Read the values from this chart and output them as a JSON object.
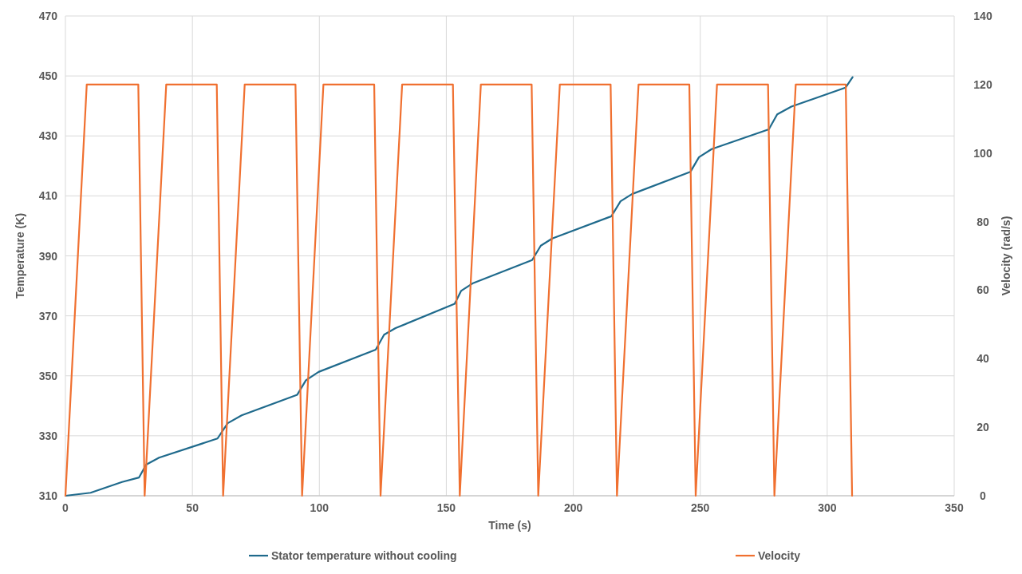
{
  "chart_data": {
    "type": "line",
    "xlabel": "Time (s)",
    "ylabel": "Temperature (K)",
    "y2label": "Velocity (rad/s)",
    "xlim": [
      0,
      350
    ],
    "xticks": [
      0,
      50,
      100,
      150,
      200,
      250,
      300,
      350
    ],
    "ylim": [
      310,
      470
    ],
    "yticks": [
      310,
      330,
      350,
      370,
      390,
      410,
      430,
      450,
      470
    ],
    "y2lim": [
      0,
      140
    ],
    "y2ticks": [
      0,
      20,
      40,
      60,
      80,
      100,
      120,
      140
    ],
    "grid": true,
    "legend": "bottom",
    "series": [
      {
        "name": "Stator temperature without cooling",
        "color": "#1f6a8c",
        "x": [
          0,
          9.9,
          22.3,
          29,
          31.8,
          36.9,
          59.9,
          63.9,
          69.4,
          91.3,
          94.7,
          99.7,
          122.2,
          125.5,
          130,
          153.3,
          155.8,
          160.3,
          183.8,
          187.2,
          191.7,
          215,
          218.6,
          223.1,
          246.1,
          249.5,
          254.5,
          277,
          280.3,
          285.9,
          307.2,
          310
        ],
        "values": [
          310,
          311,
          314.6,
          316.1,
          320.4,
          322.7,
          329.1,
          334.2,
          336.8,
          343.7,
          348.5,
          351.3,
          358.7,
          363.7,
          365.9,
          374,
          378.3,
          380.8,
          388.6,
          393.4,
          395.8,
          403.2,
          408.2,
          410.6,
          418,
          422.9,
          425.6,
          432.2,
          437.2,
          439.8,
          446.1,
          449.6
        ]
      },
      {
        "name": "Velocity",
        "color": "#f07030",
        "axis": "y2",
        "x": [
          0,
          8.4,
          28.7,
          31.2,
          39.7,
          59.6,
          62.1,
          70.6,
          90.6,
          93.2,
          101.6,
          121.6,
          124.1,
          132.6,
          152.6,
          155.3,
          163.6,
          183.6,
          186.2,
          194.7,
          214.7,
          217.2,
          225.7,
          245.7,
          248.2,
          256.6,
          276.7,
          279.2,
          287.6,
          307.3,
          309.8
        ],
        "values": [
          0,
          120,
          120,
          0,
          120,
          120,
          0,
          120,
          120,
          0,
          120,
          120,
          0,
          120,
          120,
          0,
          120,
          120,
          0,
          120,
          120,
          0,
          120,
          120,
          0,
          120,
          120,
          0,
          120,
          120,
          0
        ]
      }
    ]
  }
}
